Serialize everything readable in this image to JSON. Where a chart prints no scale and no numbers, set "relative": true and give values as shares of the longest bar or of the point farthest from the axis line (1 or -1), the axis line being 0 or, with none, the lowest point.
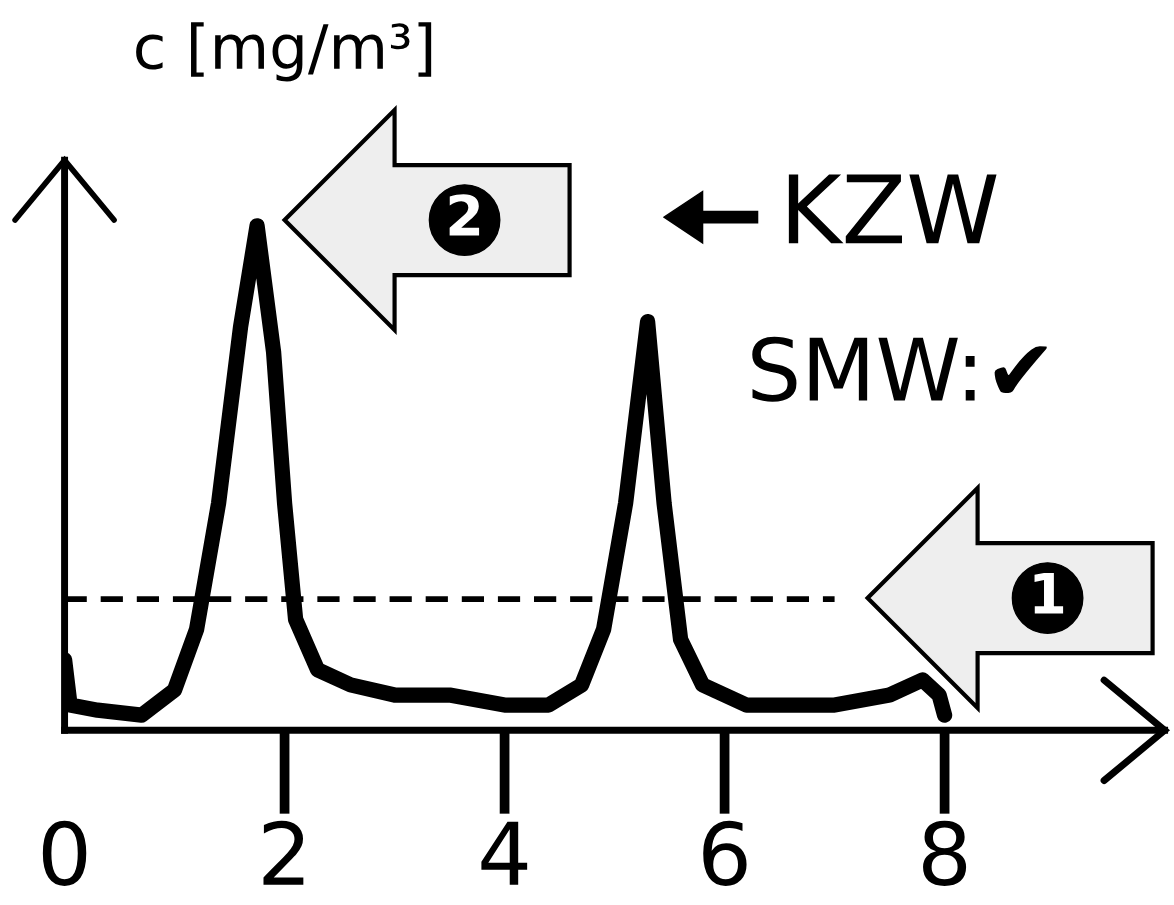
{
  "chart_data": {
    "type": "line",
    "relative": true,
    "ylabel": "c [mg/m³]",
    "xlim": [
      0,
      10
    ],
    "xticks": [
      0,
      2,
      4,
      6,
      8
    ],
    "x": [
      0,
      0.05,
      0.3,
      0.7,
      1.0,
      1.2,
      1.4,
      1.6,
      1.75,
      1.9,
      2.0,
      2.1,
      2.3,
      2.6,
      3.0,
      3.5,
      4.0,
      4.4,
      4.7,
      4.9,
      5.1,
      5.3,
      5.45,
      5.6,
      5.8,
      6.2,
      7.0,
      7.5,
      7.8,
      7.95,
      8.0
    ],
    "series": [
      {
        "color": "#000000",
        "values": [
          0.14,
          0.05,
          0.04,
          0.03,
          0.08,
          0.2,
          0.45,
          0.8,
          1.0,
          0.75,
          0.45,
          0.22,
          0.12,
          0.09,
          0.07,
          0.07,
          0.05,
          0.05,
          0.09,
          0.2,
          0.45,
          0.81,
          0.45,
          0.18,
          0.09,
          0.05,
          0.05,
          0.07,
          0.1,
          0.07,
          0.03
        ]
      }
    ],
    "ref_lines": [
      {
        "axis": "y",
        "value": 0.26,
        "line_style": "dashed",
        "color": "#000000"
      }
    ],
    "annotations": [
      "2",
      "1",
      "KZW",
      "SMW:✔"
    ],
    "line_style": "solid",
    "grid": false,
    "legend": false
  }
}
